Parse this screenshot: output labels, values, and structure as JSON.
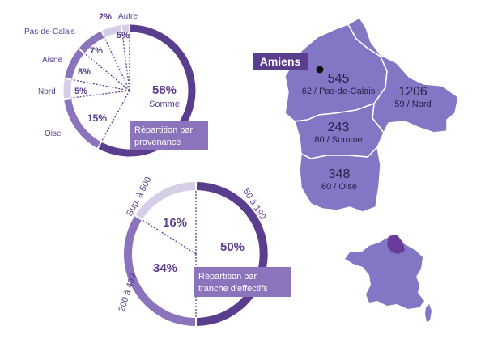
{
  "chart_data": [
    {
      "type": "pie",
      "slices": [
        {
          "label": "Somme",
          "value": 58,
          "value_label": "58%"
        },
        {
          "label": "Oise",
          "value": 15,
          "value_label": "15%"
        },
        {
          "label": "Nord",
          "value": 5,
          "value_label": "5%"
        },
        {
          "label": "Aisne",
          "value": 8,
          "value_label": "8%"
        },
        {
          "label": "Pas-de-Calais",
          "value": 7,
          "value_label": "7%"
        },
        {
          "label": "",
          "value": 5,
          "value_label": "5%"
        },
        {
          "label": "Autre",
          "value": 2,
          "value_label": "2%"
        }
      ],
      "caption_lines": [
        "Répartition par",
        "provenance"
      ]
    },
    {
      "type": "pie",
      "slices": [
        {
          "label": "50 à 199",
          "value": 50,
          "value_label": "50%"
        },
        {
          "label": "200 à 499",
          "value": 34,
          "value_label": "34%"
        },
        {
          "label": "Sup. à 500",
          "value": 16,
          "value_label": "16%"
        }
      ],
      "caption_lines": [
        "Répartition par",
        "tranche d'effectifs"
      ]
    }
  ],
  "map": {
    "city": "Amiens",
    "departments": [
      {
        "value": "545",
        "label": "62 / Pas-de-Calais"
      },
      {
        "value": "1206",
        "label": "59 / Nord"
      },
      {
        "value": "243",
        "label": "80 / Somme"
      },
      {
        "value": "348",
        "label": "60 / Oise"
      }
    ]
  },
  "colors": {
    "dark": "#5b3d8e",
    "medium": "#8c74bc",
    "light": "#d6cde7",
    "map_fill": "#8277c4",
    "highlight": "#6a3b9a"
  }
}
